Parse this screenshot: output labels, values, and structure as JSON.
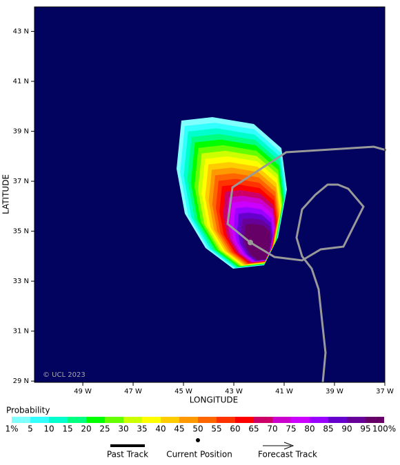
{
  "chart_data": {
    "type": "map",
    "xlabel": "LONGITUDE",
    "ylabel": "LATITUDE",
    "credit": "© UCL 2023",
    "xlim": [
      -50.92,
      -37
    ],
    "ylim": [
      28.95,
      43.98
    ],
    "xticks": [
      {
        "value": -49,
        "label": "49 W"
      },
      {
        "value": -47,
        "label": "47 W"
      },
      {
        "value": -45,
        "label": "45 W"
      },
      {
        "value": -43,
        "label": "43 W"
      },
      {
        "value": -41,
        "label": "41 W"
      },
      {
        "value": -39,
        "label": "39 W"
      },
      {
        "value": -37,
        "label": "37 W"
      }
    ],
    "yticks": [
      {
        "value": 29,
        "label": "29 N"
      },
      {
        "value": 31,
        "label": "31 N"
      },
      {
        "value": 33,
        "label": "33 N"
      },
      {
        "value": 35,
        "label": "35 N"
      },
      {
        "value": 37,
        "label": "37 N"
      },
      {
        "value": 39,
        "label": "39 N"
      },
      {
        "value": 41,
        "label": "41 N"
      },
      {
        "value": 43,
        "label": "43 N"
      }
    ],
    "colorbar": {
      "title": "Probability",
      "labels": [
        "1%",
        "5",
        "10",
        "15",
        "20",
        "25",
        "30",
        "35",
        "40",
        "45",
        "50",
        "55",
        "60",
        "65",
        "70",
        "75",
        "80",
        "85",
        "90",
        "95",
        "100%"
      ],
      "colors": [
        "#80ffff",
        "#33ffff",
        "#00ffcc",
        "#00ff80",
        "#00ff00",
        "#66ff00",
        "#ccff00",
        "#ffff00",
        "#ffcc00",
        "#ff9900",
        "#ff6600",
        "#ff3300",
        "#ff0000",
        "#cc0066",
        "#cc00cc",
        "#cc00ff",
        "#9900ff",
        "#6600cc",
        "#660099",
        "#660066"
      ]
    },
    "legend": [
      "Past Track",
      "Current Position",
      "Forecast Track"
    ]
  }
}
